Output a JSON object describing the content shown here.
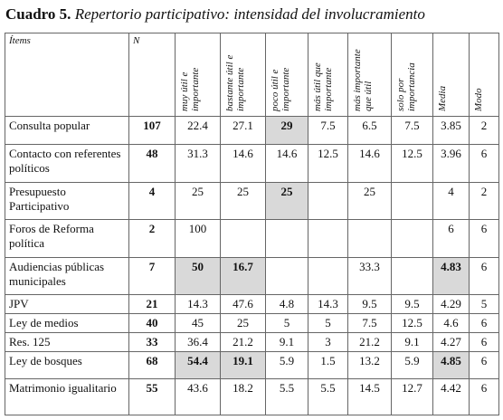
{
  "title": {
    "label": "Cuadro 5.",
    "text": "Repertorio participativo: intensidad del involucramiento"
  },
  "table": {
    "headers": [
      "Ítems",
      "N",
      "muy útil e importante",
      "bastante útil e importante",
      "poco útil e importante",
      "más útil que importante",
      "más importante que útil",
      "solo por importancia",
      "Media",
      "Modo"
    ],
    "rows": [
      {
        "item": "Consulta popular",
        "n": 107,
        "values": [
          22.4,
          27.1,
          29,
          7.5,
          6.5,
          7.5,
          3.85,
          2
        ]
      },
      {
        "item": "Contacto con referentes políticos",
        "n": 48,
        "values": [
          31.3,
          14.6,
          14.6,
          12.5,
          14.6,
          12.5,
          3.96,
          6
        ]
      },
      {
        "item": "Presupuesto Participativo",
        "n": 4,
        "values": [
          25,
          25,
          25,
          null,
          25,
          null,
          4,
          2
        ]
      },
      {
        "item": "Foros de Reforma política",
        "n": 2,
        "values": [
          100,
          null,
          null,
          null,
          null,
          null,
          6,
          6
        ]
      },
      {
        "item": "Audiencias públicas municipales",
        "n": 7,
        "values": [
          50,
          16.7,
          null,
          null,
          33.3,
          null,
          4.83,
          6
        ]
      },
      {
        "item": "JPV",
        "n": 21,
        "values": [
          14.3,
          47.6,
          4.8,
          14.3,
          9.5,
          9.5,
          4.29,
          5
        ]
      },
      {
        "item": "Ley de medios",
        "n": 40,
        "values": [
          45,
          25,
          5,
          5,
          7.5,
          12.5,
          4.6,
          6
        ]
      },
      {
        "item": "Res. 125",
        "n": 33,
        "values": [
          36.4,
          21.2,
          9.1,
          3,
          21.2,
          9.1,
          4.27,
          6
        ]
      },
      {
        "item": "Ley de bosques",
        "n": 68,
        "values": [
          54.4,
          19.1,
          5.9,
          1.5,
          13.2,
          5.9,
          4.85,
          6
        ]
      },
      {
        "item": "Matrimonio igualitario",
        "n": 55,
        "values": [
          43.6,
          18.2,
          5.5,
          5.5,
          14.5,
          12.7,
          4.42,
          6
        ]
      }
    ]
  }
}
